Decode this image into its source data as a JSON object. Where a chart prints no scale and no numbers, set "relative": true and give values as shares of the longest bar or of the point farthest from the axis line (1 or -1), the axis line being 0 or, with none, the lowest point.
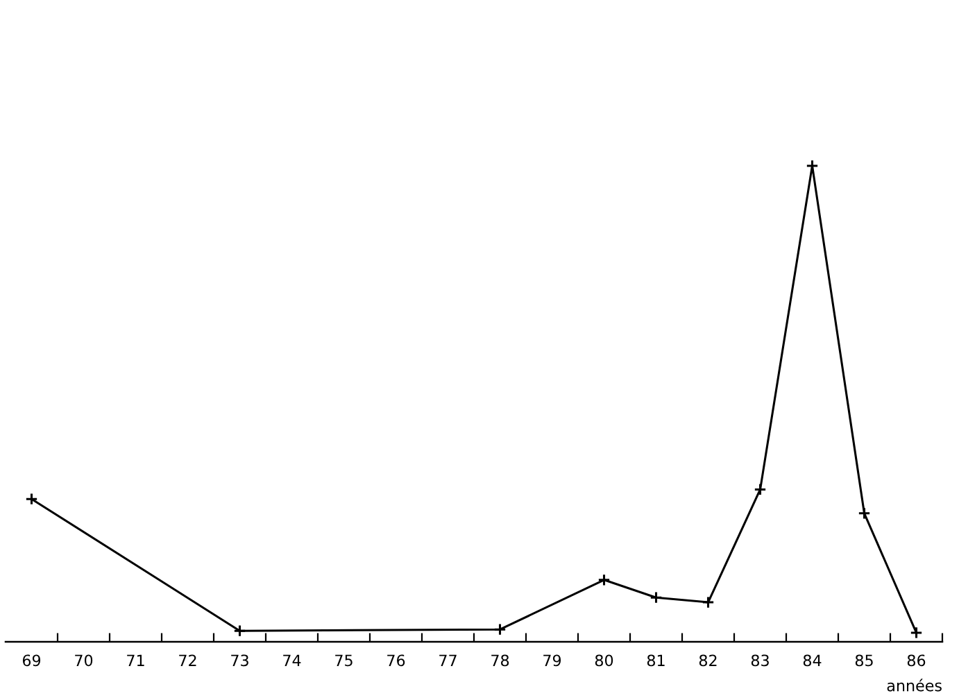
{
  "chart_data": {
    "type": "line",
    "xlabel": "années",
    "relative": true,
    "marker": "cross",
    "line_style": "solid",
    "categories": [
      "69",
      "70",
      "71",
      "72",
      "73",
      "74",
      "75",
      "76",
      "77",
      "78",
      "79",
      "80",
      "81",
      "82",
      "83",
      "84",
      "85",
      "86"
    ],
    "series": [
      {
        "color": "#000000",
        "x": [
          "69",
          "73",
          "78",
          "80",
          "81",
          "82",
          "83",
          "84",
          "85",
          "86"
        ],
        "values": [
          0.3,
          0.023,
          0.026,
          0.13,
          0.093,
          0.083,
          0.32,
          1,
          0.27,
          0.019
        ]
      }
    ]
  }
}
